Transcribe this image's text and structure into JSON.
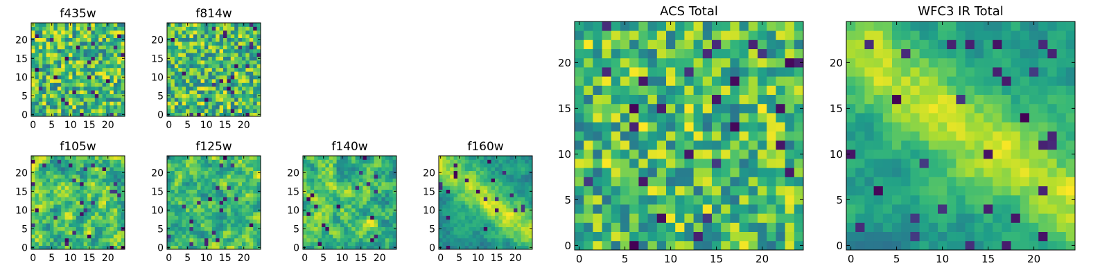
{
  "chart_data": [
    {
      "type": "heatmap",
      "title": "f435w",
      "shape": [
        25,
        25
      ],
      "x_ticks": [
        "0",
        "5",
        "10",
        "15",
        "20"
      ],
      "y_ticks": [
        "0",
        "5",
        "10",
        "15",
        "20"
      ],
      "xlim": [
        0,
        25
      ],
      "ylim": [
        0,
        25
      ],
      "colormap": "viridis",
      "pattern": "noise",
      "seed": 11
    },
    {
      "type": "heatmap",
      "title": "f814w",
      "shape": [
        25,
        25
      ],
      "x_ticks": [
        "0",
        "5",
        "10",
        "15",
        "20"
      ],
      "y_ticks": [
        "0",
        "5",
        "10",
        "15",
        "20"
      ],
      "xlim": [
        0,
        25
      ],
      "ylim": [
        0,
        25
      ],
      "colormap": "viridis",
      "pattern": "noise",
      "seed": 23
    },
    {
      "type": "heatmap",
      "title": "f105w",
      "shape": [
        25,
        25
      ],
      "x_ticks": [
        "0",
        "5",
        "10",
        "15",
        "20"
      ],
      "y_ticks": [
        "0",
        "5",
        "10",
        "15",
        "20"
      ],
      "xlim": [
        0,
        25
      ],
      "ylim": [
        0,
        25
      ],
      "colormap": "viridis",
      "pattern": "smooth",
      "seed": 37
    },
    {
      "type": "heatmap",
      "title": "f125w",
      "shape": [
        25,
        25
      ],
      "x_ticks": [
        "0",
        "5",
        "10",
        "15",
        "20"
      ],
      "y_ticks": [
        "0",
        "5",
        "10",
        "15",
        "20"
      ],
      "xlim": [
        0,
        25
      ],
      "ylim": [
        0,
        25
      ],
      "colormap": "viridis",
      "pattern": "smooth",
      "seed": 41
    },
    {
      "type": "heatmap",
      "title": "f140w",
      "shape": [
        25,
        25
      ],
      "x_ticks": [
        "0",
        "5",
        "10",
        "15",
        "20"
      ],
      "y_ticks": [
        "0",
        "5",
        "10",
        "15",
        "20"
      ],
      "xlim": [
        0,
        25
      ],
      "ylim": [
        0,
        25
      ],
      "colormap": "viridis",
      "pattern": "smooth",
      "seed": 53
    },
    {
      "type": "heatmap",
      "title": "f160w",
      "shape": [
        25,
        25
      ],
      "x_ticks": [
        "0",
        "5",
        "10",
        "15",
        "20"
      ],
      "y_ticks": [
        "0",
        "5",
        "10",
        "15",
        "20"
      ],
      "xlim": [
        0,
        25
      ],
      "ylim": [
        0,
        25
      ],
      "colormap": "viridis",
      "pattern": "diagonal",
      "seed": 67
    },
    {
      "type": "heatmap",
      "title": "ACS Total",
      "shape": [
        25,
        25
      ],
      "x_ticks": [
        "0",
        "5",
        "10",
        "15",
        "20"
      ],
      "y_ticks": [
        "0",
        "5",
        "10",
        "15",
        "20"
      ],
      "xlim": [
        0,
        25
      ],
      "ylim": [
        0,
        25
      ],
      "colormap": "viridis",
      "pattern": "noise",
      "seed": 79
    },
    {
      "type": "heatmap",
      "title": "WFC3 IR Total",
      "shape": [
        25,
        25
      ],
      "x_ticks": [
        "0",
        "5",
        "10",
        "15",
        "20"
      ],
      "y_ticks": [
        "0",
        "5",
        "10",
        "15",
        "20"
      ],
      "xlim": [
        0,
        25
      ],
      "ylim": [
        0,
        25
      ],
      "colormap": "viridis",
      "pattern": "diagonal",
      "seed": 97
    }
  ]
}
